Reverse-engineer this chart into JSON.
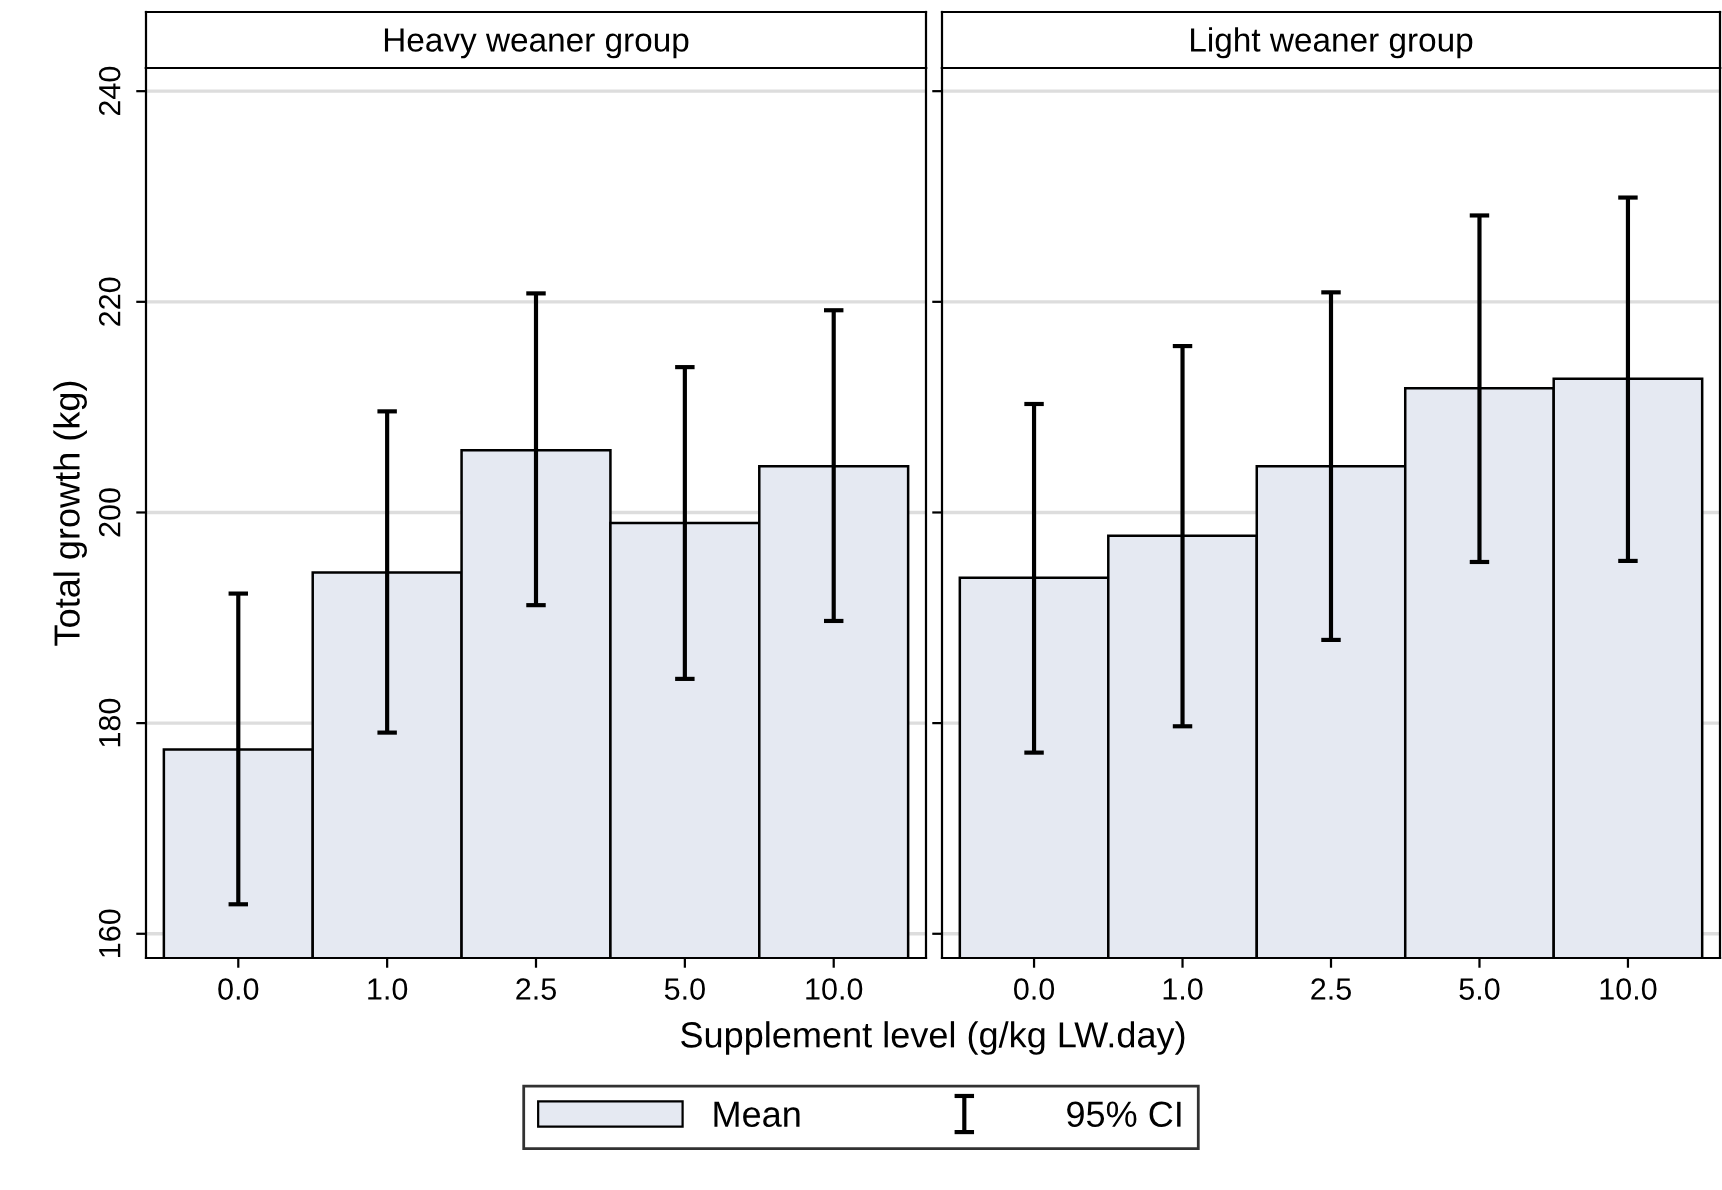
{
  "chart_data": [
    {
      "type": "bar",
      "title": "Heavy weaner group",
      "ylabel": "Total growth (kg)",
      "xlabel": "Supplement level (g/kg LW.day)",
      "categories": [
        "0.0",
        "1.0",
        "2.5",
        "5.0",
        "10.0"
      ],
      "series": [
        {
          "name": "Mean",
          "color": "#e5e9f2",
          "values": [
            177.5,
            194.3,
            205.9,
            199.0,
            204.4
          ],
          "errors": [
            [
              162.8,
              192.3
            ],
            [
              179.1,
              209.6
            ],
            [
              191.2,
              220.8
            ],
            [
              184.2,
              213.8
            ],
            [
              189.7,
              219.2
            ]
          ]
        }
      ],
      "annotations": [
        "95% CI"
      ],
      "ylim": [
        157.7,
        242.2
      ],
      "yticks": [
        160,
        180,
        200,
        220,
        240
      ],
      "grid": "y",
      "legend": "bottom"
    },
    {
      "type": "bar",
      "title": "Light weaner group",
      "categories": [
        "0.0",
        "1.0",
        "2.5",
        "5.0",
        "10.0"
      ],
      "series": [
        {
          "color": "#e5e9f2",
          "values": [
            193.8,
            197.8,
            204.4,
            211.8,
            212.7
          ],
          "errors": [
            [
              177.2,
              210.3
            ],
            [
              179.7,
              215.8
            ],
            [
              187.9,
              220.9
            ],
            [
              195.3,
              228.2
            ],
            [
              195.4,
              229.9
            ]
          ]
        }
      ],
      "ylim": [
        157.7,
        242.2
      ],
      "yticks": [
        160,
        180,
        200,
        220,
        240
      ],
      "grid": "y",
      "tick_labels": "x"
    }
  ]
}
